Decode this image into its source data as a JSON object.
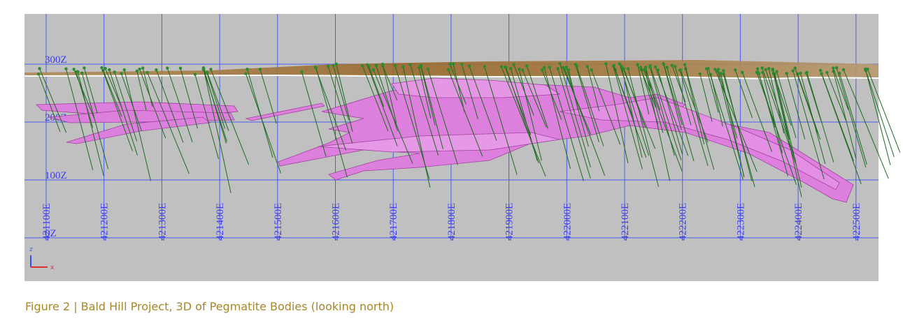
{
  "figure": {
    "grid": {
      "eastings": [
        "421100E",
        "421200E",
        "421300E",
        "421400E",
        "421500E",
        "421600E",
        "421700E",
        "421800E",
        "421900E",
        "422000E",
        "422100E",
        "422200E",
        "422300E",
        "422400E",
        "422500E"
      ],
      "levels": [
        "300Z",
        "200Z",
        "100Z",
        "0Z"
      ]
    },
    "triad": {
      "z": "z",
      "x": "x"
    }
  },
  "caption": "Figure 2 | Bald Hill Project, 3D of Pegmatite Bodies (looking north)"
}
